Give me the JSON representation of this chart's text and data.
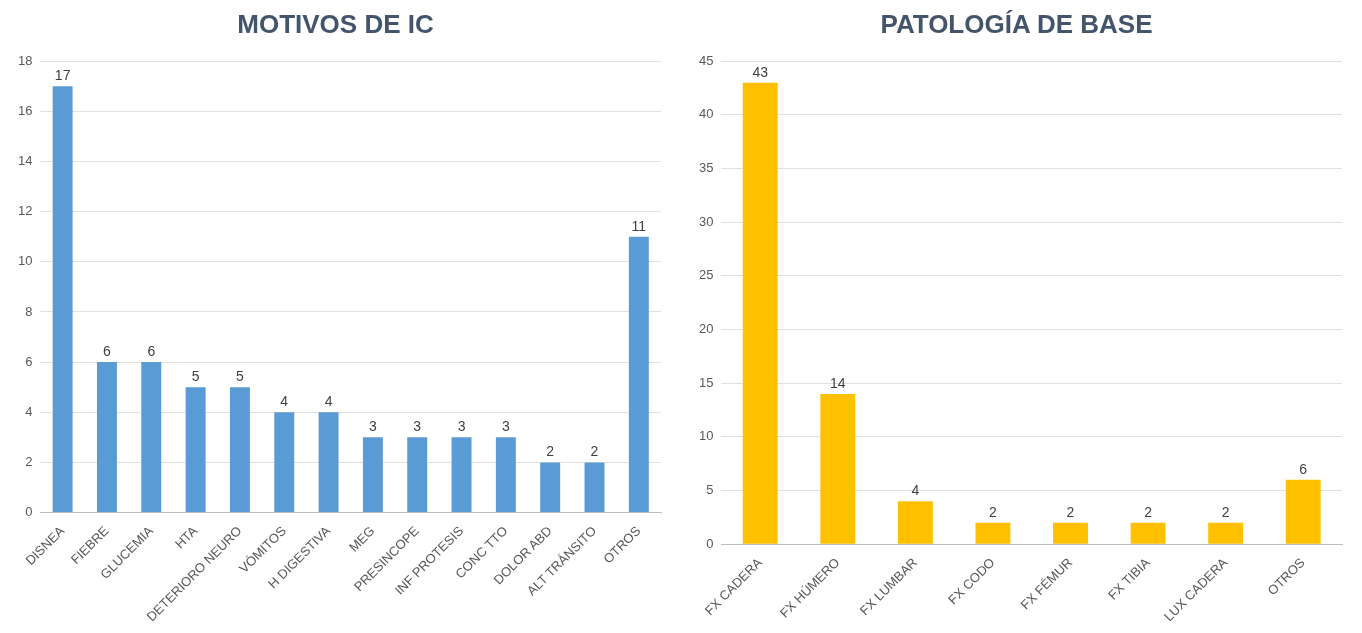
{
  "chart_data": [
    {
      "type": "bar",
      "title": "MOTIVOS DE IC",
      "categories": [
        "DISNEA",
        "FIEBRE",
        "GLUCEMIA",
        "HTA",
        "DETERIORO NEURO",
        "VÓMITOS",
        "H DIGESTIVA",
        "MEG",
        "PRESINCOPE",
        "INF PROTESIS",
        "CONC TTO",
        "DOLOR ABD",
        "ALT TRÁNSITO",
        "OTROS"
      ],
      "values": [
        17,
        6,
        6,
        5,
        5,
        4,
        4,
        3,
        3,
        3,
        3,
        2,
        2,
        11
      ],
      "color": "#5b9bd5",
      "ylim": [
        0,
        18
      ],
      "yticks": [
        0,
        2,
        4,
        6,
        8,
        10,
        12,
        14,
        16,
        18
      ],
      "grid": "y",
      "data_labels": true
    },
    {
      "type": "bar",
      "title": "PATOLOGÍA DE BASE",
      "categories": [
        "FX CADERA",
        "FX HÚMERO",
        "FX LUMBAR",
        "FX CODO",
        "FX FÉMUR",
        "FX TIBIA",
        "LUX CADERA",
        "OTROS"
      ],
      "values": [
        43,
        14,
        4,
        2,
        2,
        2,
        2,
        6
      ],
      "color": "#ffc000",
      "ylim": [
        0,
        45
      ],
      "yticks": [
        0,
        5,
        10,
        15,
        20,
        25,
        30,
        35,
        40,
        45
      ],
      "grid": "y",
      "data_labels": true
    }
  ]
}
